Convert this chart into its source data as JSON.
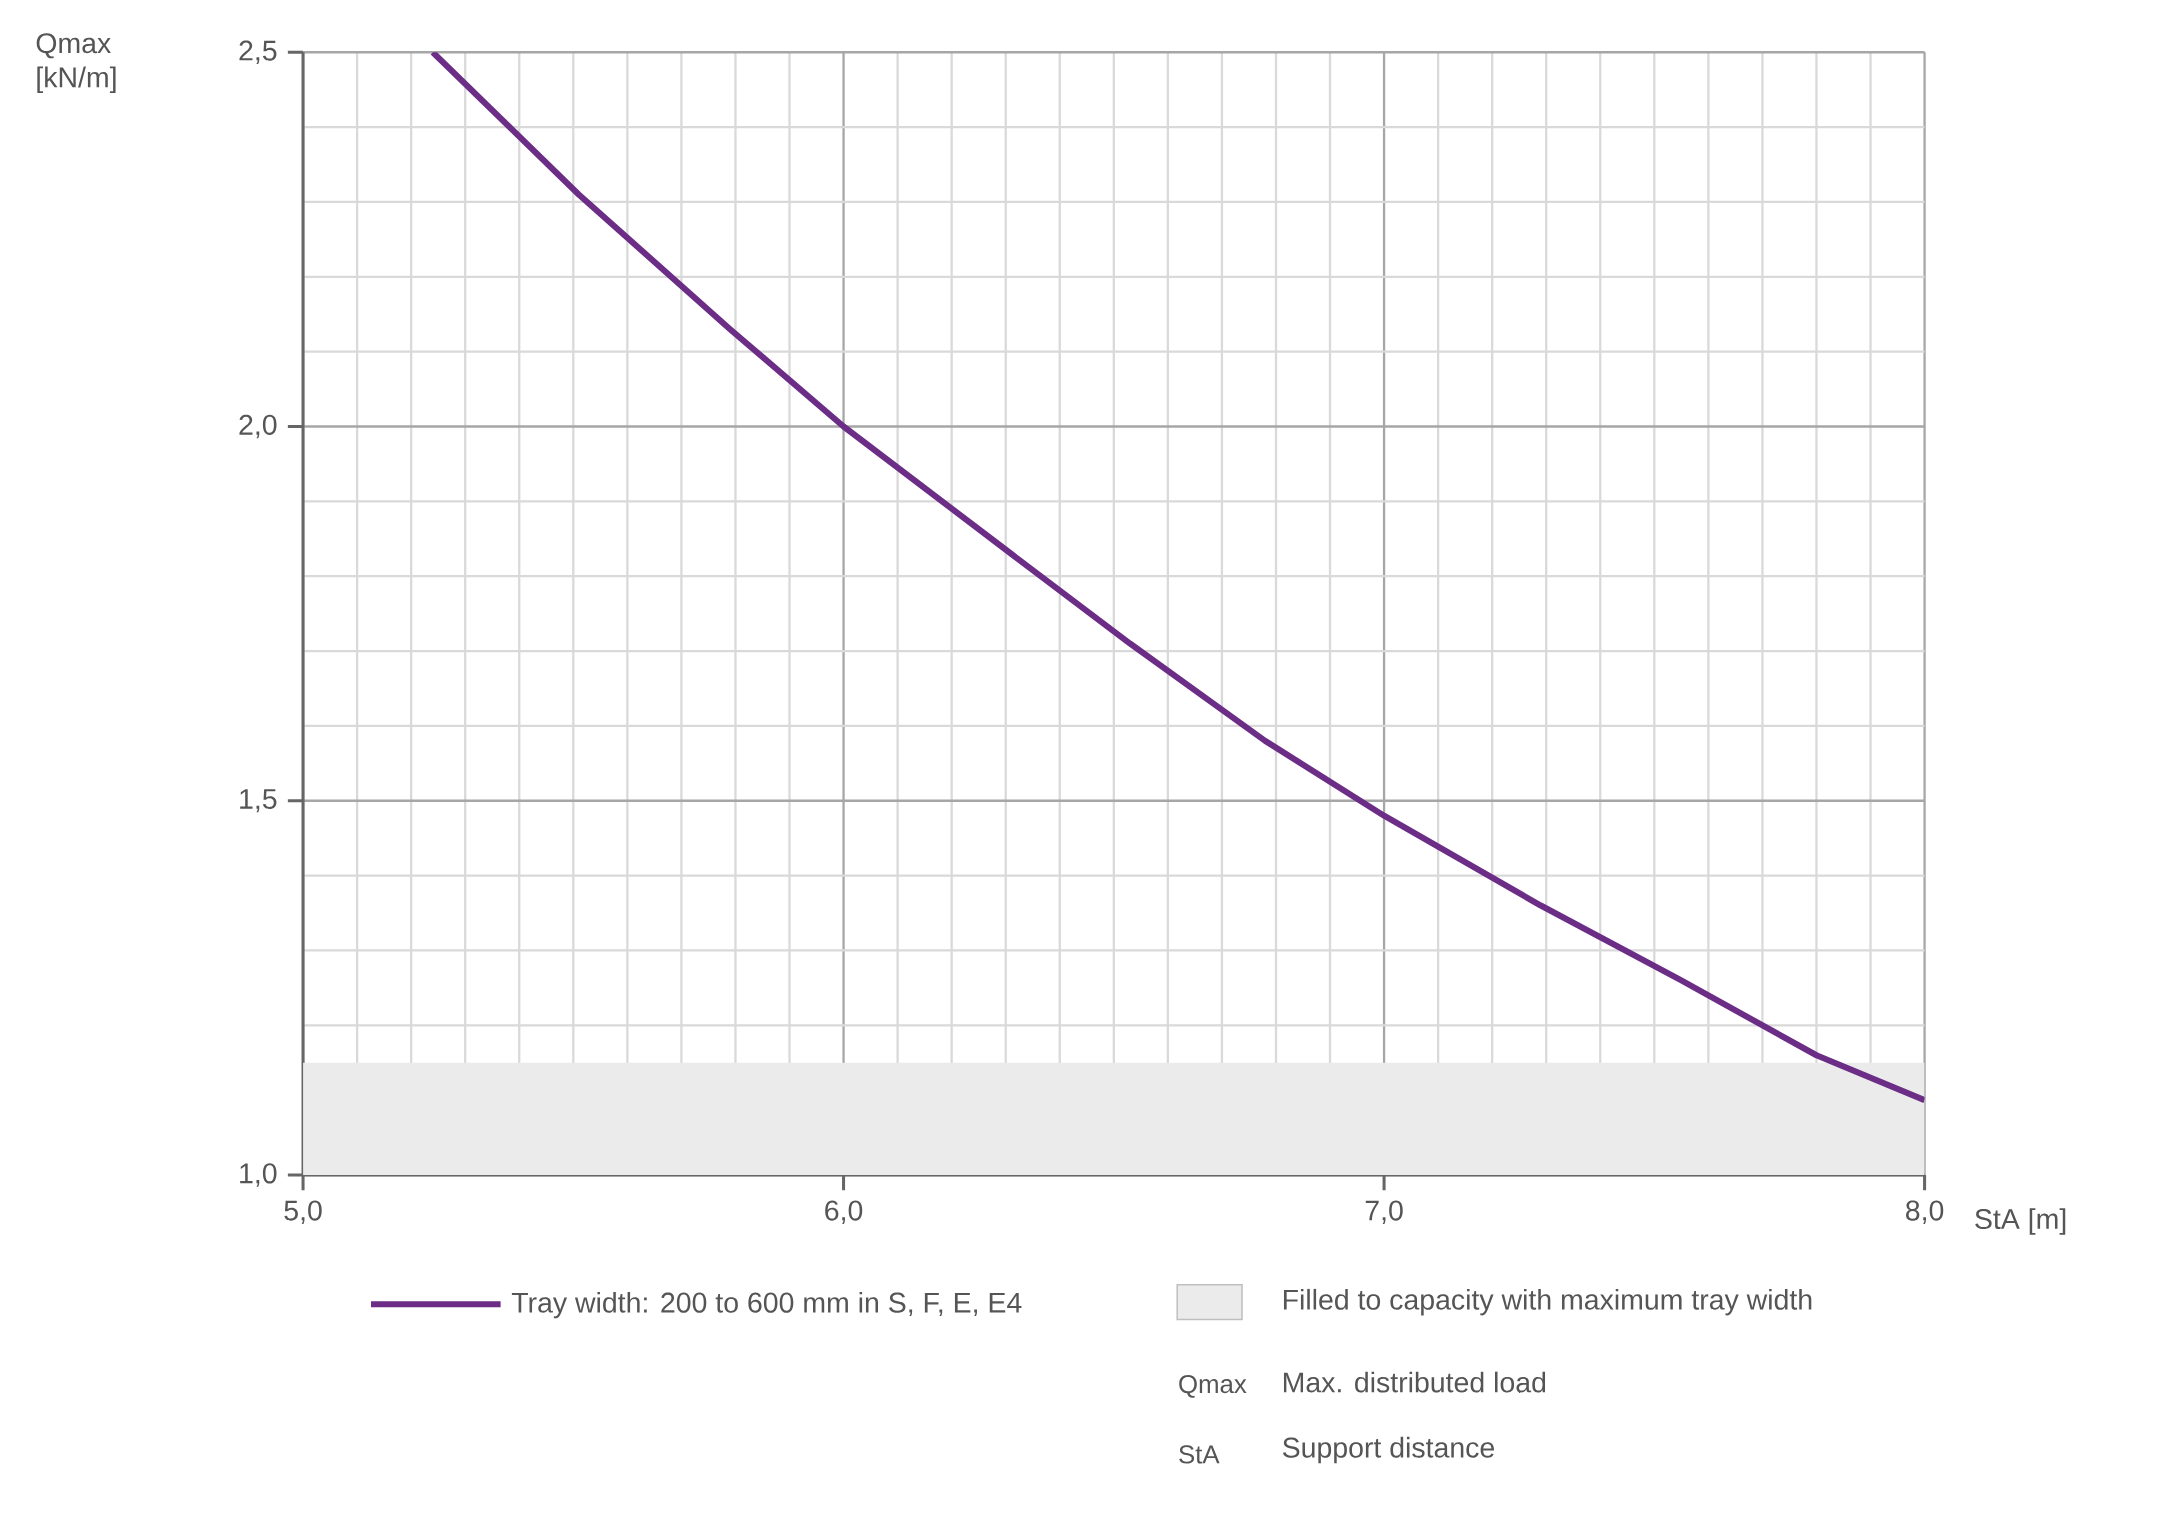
{
  "chart_data": {
    "type": "line",
    "ylabel": "Qmax [kN/m]",
    "xlabel": "StA [m]",
    "xlim": [
      5,
      8
    ],
    "ylim": [
      1,
      2.5
    ],
    "xticks": [
      {
        "value": 5,
        "label": "5,0"
      },
      {
        "value": 6,
        "label": "6,0"
      },
      {
        "value": 7,
        "label": "7,0"
      },
      {
        "value": 8,
        "label": "8,0"
      }
    ],
    "yticks": [
      {
        "value": 1,
        "label": "1,0"
      },
      {
        "value": 1.5,
        "label": "1,5"
      },
      {
        "value": 2,
        "label": "2,0"
      },
      {
        "value": 2.5,
        "label": "2,5"
      }
    ],
    "grid": true,
    "legend": "bottom",
    "marker": "none",
    "line_style": "solid",
    "series": [
      {
        "name": "Tray width: 200 to 600 mm in S, F, E, E4",
        "color": "#6b2d86",
        "x": [
          5.24,
          5.51,
          5.79,
          6.0,
          6.31,
          6.53,
          6.78,
          7.0,
          7.29,
          7.55,
          7.8,
          8.0
        ],
        "values": [
          2.5,
          2.31,
          2.13,
          2.0,
          1.83,
          1.71,
          1.58,
          1.48,
          1.36,
          1.26,
          1.16,
          1.1
        ]
      }
    ],
    "bands": [
      {
        "axis": "y",
        "from": 1.0,
        "to": 1.15,
        "label": "Filled to capacity with maximum tray width",
        "color": "#ebebeb"
      }
    ],
    "annotations": [
      "Qmax",
      "Max. distributed load",
      "StA",
      "Support distance"
    ]
  }
}
